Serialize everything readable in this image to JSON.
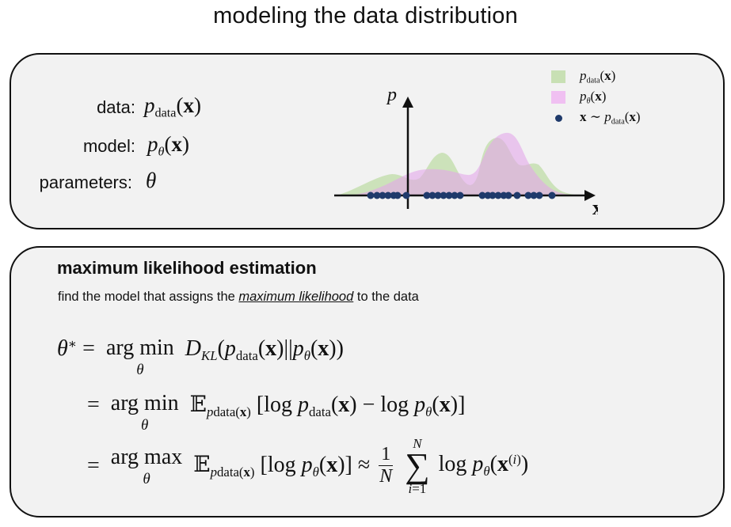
{
  "title": "modeling the data distribution",
  "definitions": {
    "data_label": "data:",
    "model_label": "model:",
    "params_label": "parameters:"
  },
  "chart": {
    "y_axis_label": "p",
    "x_axis_label": "x",
    "legend": [
      {
        "label": "p_data(x)",
        "color": "#c8e0b4"
      },
      {
        "label": "p_θ(x)",
        "color": "#f0c0f2"
      },
      {
        "label": "x ~ p_data(x)",
        "color": "#1f3a6b"
      }
    ]
  },
  "chart_data": {
    "type": "area",
    "xlabel": "x",
    "ylabel": "p",
    "series": [
      {
        "name": "p_data(x)",
        "color": "#c8e0b4"
      },
      {
        "name": "p_θ(x)",
        "color": "#f0c0f2"
      },
      {
        "name": "x ~ p_data(x)",
        "color": "#1f3a6b"
      }
    ],
    "grid": false,
    "legend_position": "top-right"
  },
  "mle": {
    "title": "maximum likelihood estimation",
    "subtitle_before": "find the model that assigns the ",
    "subtitle_emph": "maximum likelihood",
    "subtitle_after": " to the data"
  }
}
